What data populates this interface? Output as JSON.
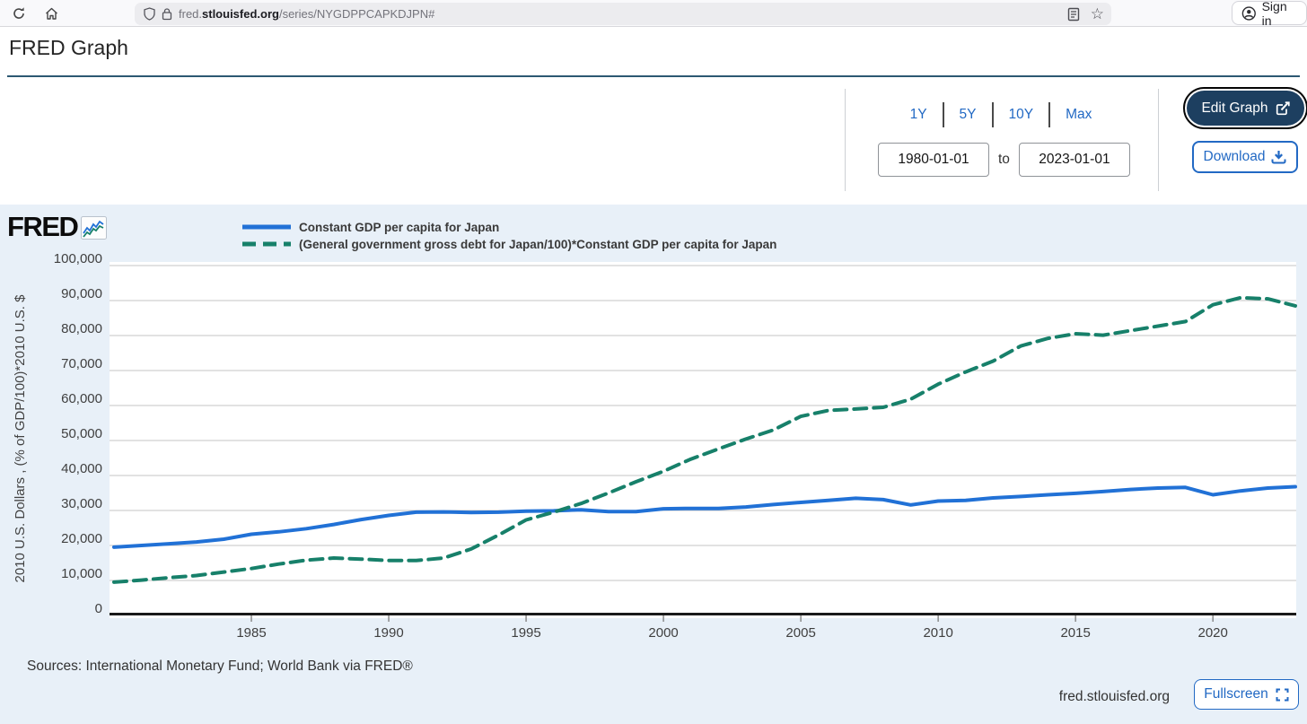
{
  "browser": {
    "url_prefix": "fred.",
    "url_domain": "stlouisfed.org",
    "url_path": "/series/NYGDPPCAPKDJPN#",
    "sign_in_label": "Sign in"
  },
  "header": {
    "title": "FRED Graph"
  },
  "controls": {
    "ranges": [
      "1Y",
      "5Y",
      "10Y",
      "Max"
    ],
    "date_start": "1980-01-01",
    "date_to_label": "to",
    "date_end": "2023-01-01",
    "edit_graph_label": "Edit Graph",
    "download_label": "Download"
  },
  "chart": {
    "brand": "FRED",
    "y_axis_title": "2010 U.S. Dollars , (% of GDP/100)*2010 U.S. $",
    "sources": "Sources: International Monetary Fund; World Bank via FRED®",
    "watermark": "fred.stlouisfed.org",
    "fullscreen_label": "Fullscreen",
    "background_color": "#e8f0f8",
    "accent_blue": "#2269c4"
  },
  "chart_data": {
    "type": "line",
    "title": "FRED Graph",
    "xlabel": "",
    "ylabel": "2010 U.S. Dollars , (% of GDP/100)*2010 U.S. $",
    "xlim": [
      1980,
      2023
    ],
    "ylim": [
      0,
      100000
    ],
    "grid": "horizontal",
    "legend_position": "top-left",
    "x_ticks": [
      1985,
      1990,
      1995,
      2000,
      2005,
      2010,
      2015,
      2020
    ],
    "y_ticks": [
      {
        "value": 100000,
        "label": "100,000"
      },
      {
        "value": 90000,
        "label": "90,000"
      },
      {
        "value": 80000,
        "label": "80,000"
      },
      {
        "value": 70000,
        "label": "70,000"
      },
      {
        "value": 60000,
        "label": "60,000"
      },
      {
        "value": 50000,
        "label": "50,000"
      },
      {
        "value": 40000,
        "label": "40,000"
      },
      {
        "value": 30000,
        "label": "30,000"
      },
      {
        "value": 20000,
        "label": "20,000"
      },
      {
        "value": 10000,
        "label": "10,000"
      },
      {
        "value": 0,
        "label": "0"
      }
    ],
    "x": [
      1980,
      1981,
      1982,
      1983,
      1984,
      1985,
      1986,
      1987,
      1988,
      1989,
      1990,
      1991,
      1992,
      1993,
      1994,
      1995,
      1996,
      1997,
      1998,
      1999,
      2000,
      2001,
      2002,
      2003,
      2004,
      2005,
      2006,
      2007,
      2008,
      2009,
      2010,
      2011,
      2012,
      2013,
      2014,
      2015,
      2016,
      2017,
      2018,
      2019,
      2020,
      2021,
      2022,
      2023
    ],
    "series": [
      {
        "name": "Constant GDP per capita for Japan",
        "color": "#2171d6",
        "style": "solid",
        "values": [
          19500,
          20000,
          20500,
          21000,
          21800,
          23200,
          23900,
          24800,
          26000,
          27400,
          28600,
          29500,
          29600,
          29400,
          29500,
          29800,
          29900,
          30200,
          29700,
          29700,
          30500,
          30600,
          30600,
          31000,
          31700,
          32300,
          32900,
          33500,
          33100,
          31600,
          32700,
          32900,
          33600,
          34000,
          34500,
          34900,
          35400,
          36000,
          36400,
          36600,
          34500,
          35600,
          36400,
          36800
        ]
      },
      {
        "name": "(General government gross debt for Japan/100)*Constant GDP per capita for Japan",
        "color": "#17806a",
        "style": "dashed",
        "values": [
          9500,
          10100,
          10800,
          11400,
          12400,
          13400,
          14700,
          15800,
          16400,
          16100,
          15700,
          15700,
          16400,
          19000,
          23000,
          27300,
          29500,
          32000,
          35000,
          38200,
          41200,
          44700,
          47600,
          50400,
          53000,
          56900,
          58600,
          59000,
          59500,
          61800,
          66100,
          69600,
          72700,
          77000,
          79200,
          80500,
          80100,
          81400,
          82700,
          84000,
          88800,
          90800,
          90500,
          88500
        ]
      }
    ]
  }
}
